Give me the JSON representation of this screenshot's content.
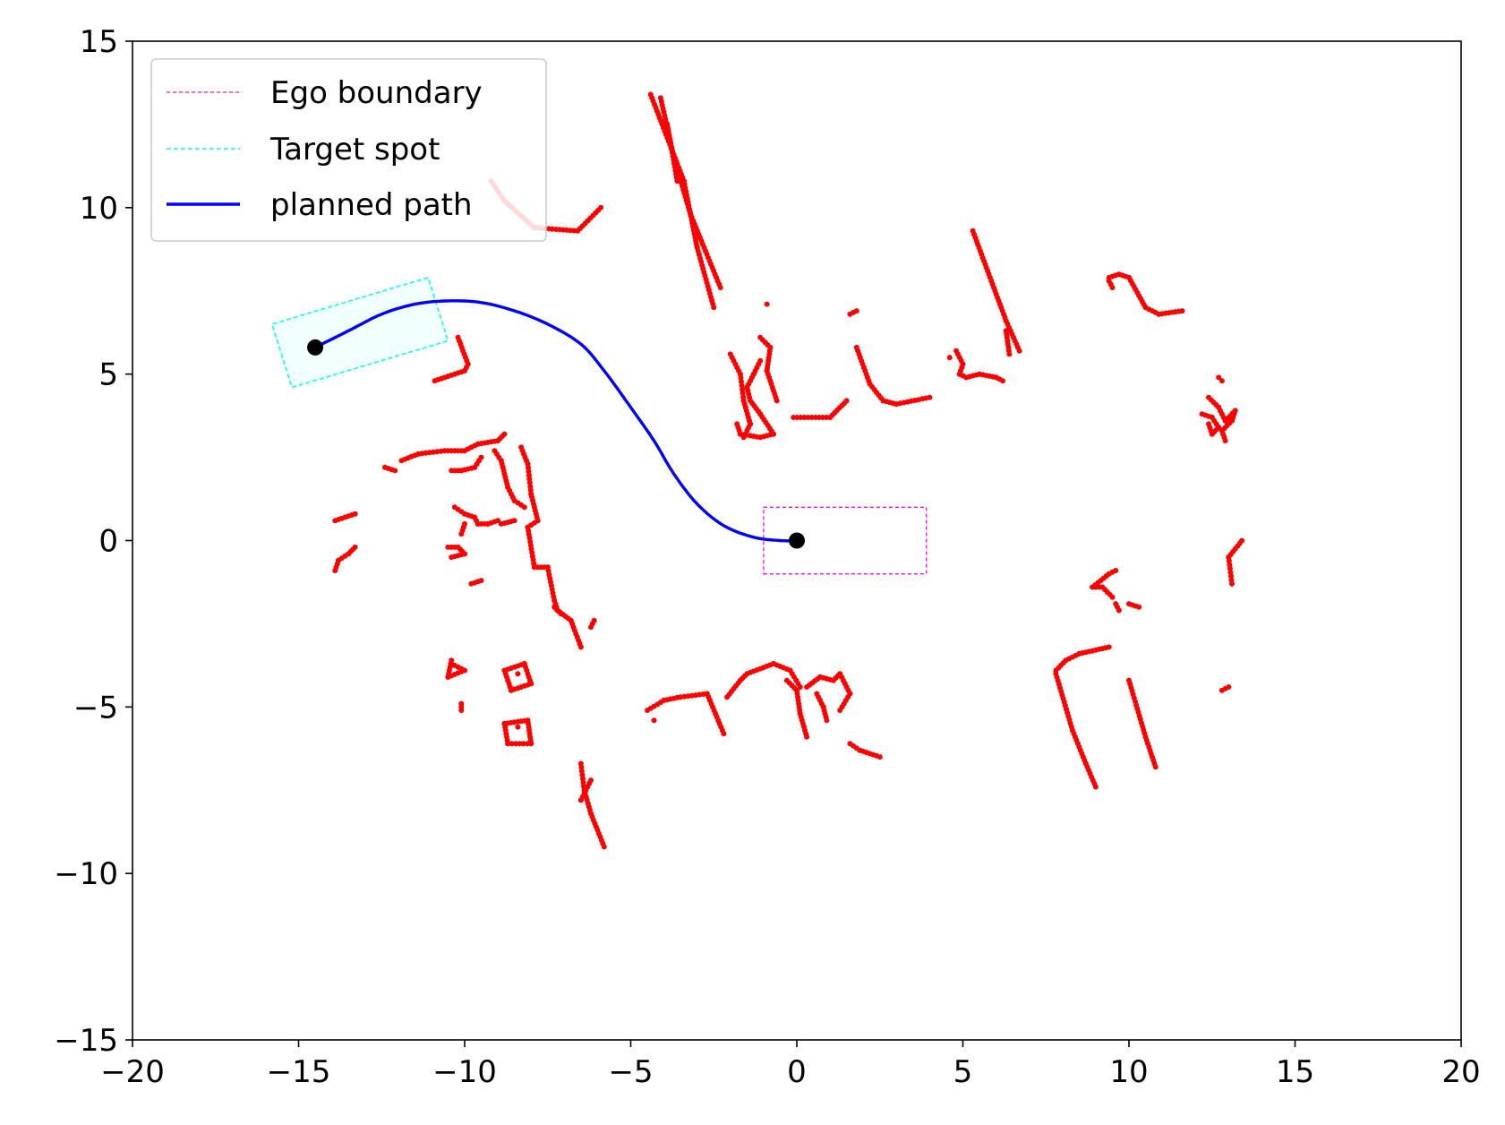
{
  "chart_data": {
    "type": "scatter",
    "title": "",
    "xlabel": "",
    "ylabel": "",
    "xlim": [
      -20,
      20
    ],
    "ylim": [
      -15,
      15
    ],
    "xticks": [
      -20,
      -15,
      -10,
      -5,
      0,
      5,
      10,
      15,
      20
    ],
    "yticks": [
      -15,
      -10,
      -5,
      0,
      5,
      10,
      15
    ],
    "xtick_labels": [
      "−20",
      "−15",
      "−10",
      "−5",
      "0",
      "5",
      "10",
      "15",
      "20"
    ],
    "ytick_labels": [
      "−15",
      "−10",
      "−5",
      "0",
      "5",
      "10",
      "15"
    ],
    "grid": false,
    "legend_position": "top-left",
    "legend": [
      {
        "label": "Ego boundary",
        "color": "#ff00ff",
        "style": "dashed"
      },
      {
        "label": "Target spot",
        "color": "#00ffff",
        "style": "dashed"
      },
      {
        "label": "planned path",
        "color": "#0000ff",
        "style": "solid"
      }
    ],
    "ego_boundary": [
      [
        -1,
        -1
      ],
      [
        3.9,
        -1
      ],
      [
        3.9,
        1
      ],
      [
        -1,
        1
      ]
    ],
    "target_spot": [
      [
        -15.2,
        4.6
      ],
      [
        -10.5,
        6.0
      ],
      [
        -11.1,
        7.9
      ],
      [
        -15.8,
        6.5
      ]
    ],
    "planned_path": [
      [
        -14.5,
        5.8
      ],
      [
        -13.5,
        6.3
      ],
      [
        -12.5,
        6.8
      ],
      [
        -11.5,
        7.1
      ],
      [
        -10.5,
        7.2
      ],
      [
        -9.5,
        7.15
      ],
      [
        -8.5,
        6.9
      ],
      [
        -7.5,
        6.5
      ],
      [
        -6.5,
        5.9
      ],
      [
        -5.8,
        5.1
      ],
      [
        -5.0,
        4.0
      ],
      [
        -4.3,
        3.0
      ],
      [
        -3.7,
        2.0
      ],
      [
        -3.0,
        1.1
      ],
      [
        -2.2,
        0.45
      ],
      [
        -1.3,
        0.1
      ],
      [
        -0.5,
        0.0
      ],
      [
        0.0,
        0.0
      ]
    ],
    "endpoints": [
      [
        -14.5,
        5.8
      ],
      [
        0.0,
        0.0
      ]
    ],
    "obstacle_segments": [
      [
        [
          -4.4,
          13.4
        ],
        [
          -3.4,
          10.8
        ],
        [
          -3.0,
          8.8
        ],
        [
          -2.5,
          7.0
        ]
      ],
      [
        [
          -4.1,
          13.3
        ],
        [
          -3.7,
          11.5
        ],
        [
          -3.2,
          9.8
        ],
        [
          -2.3,
          7.6
        ]
      ],
      [
        [
          -3.9,
          12.5
        ],
        [
          -3.6,
          10.8
        ]
      ],
      [
        [
          -9.2,
          10.8
        ],
        [
          -8.8,
          10.2
        ],
        [
          -7.9,
          9.4
        ],
        [
          -6.6,
          9.3
        ],
        [
          -5.9,
          10.0
        ]
      ],
      [
        [
          -10.2,
          6.1
        ],
        [
          -9.9,
          5.3
        ],
        [
          -10.0,
          5.1
        ],
        [
          -10.9,
          4.8
        ]
      ],
      [
        [
          -2.0,
          5.6
        ],
        [
          -1.7,
          5.0
        ],
        [
          -1.6,
          4.2
        ],
        [
          -1.4,
          3.5
        ],
        [
          -1.6,
          3.1
        ]
      ],
      [
        [
          -1.1,
          6.1
        ],
        [
          -0.8,
          5.8
        ],
        [
          -0.9,
          5.1
        ],
        [
          -0.6,
          4.2
        ]
      ],
      [
        [
          -1.1,
          5.4
        ],
        [
          -1.3,
          5.0
        ],
        [
          -1.5,
          4.6
        ],
        [
          -1.4,
          4.2
        ],
        [
          -1.1,
          3.8
        ],
        [
          -0.7,
          3.2
        ]
      ],
      [
        [
          -1.8,
          3.5
        ],
        [
          -1.7,
          3.2
        ],
        [
          -1.1,
          3.1
        ],
        [
          -0.7,
          3.2
        ]
      ],
      [
        [
          -0.9,
          7.1
        ]
      ],
      [
        [
          1.6,
          6.8
        ],
        [
          1.8,
          6.9
        ]
      ],
      [
        [
          -0.1,
          3.7
        ],
        [
          1.0,
          3.7
        ],
        [
          1.5,
          4.2
        ]
      ],
      [
        [
          1.8,
          5.8
        ],
        [
          2.2,
          4.7
        ],
        [
          2.6,
          4.2
        ],
        [
          3.0,
          4.1
        ],
        [
          4.0,
          4.3
        ]
      ],
      [
        [
          5.3,
          9.3
        ],
        [
          6.3,
          6.6
        ],
        [
          6.7,
          5.7
        ]
      ],
      [
        [
          6.3,
          6.3
        ],
        [
          6.4,
          5.6
        ]
      ],
      [
        [
          4.6,
          5.5
        ]
      ],
      [
        [
          4.8,
          5.7
        ],
        [
          5.0,
          5.3
        ],
        [
          4.9,
          5.0
        ],
        [
          5.1,
          4.9
        ],
        [
          5.5,
          5.0
        ],
        [
          6.0,
          4.9
        ],
        [
          6.2,
          4.8
        ]
      ],
      [
        [
          9.4,
          7.9
        ],
        [
          9.7,
          8.0
        ],
        [
          10.0,
          7.9
        ],
        [
          10.5,
          7.0
        ],
        [
          10.9,
          6.8
        ],
        [
          11.6,
          6.9
        ]
      ],
      [
        [
          9.4,
          7.8
        ],
        [
          9.5,
          7.6
        ]
      ],
      [
        [
          12.4,
          4.3
        ],
        [
          12.7,
          4.0
        ],
        [
          12.9,
          3.6
        ],
        [
          13.2,
          3.9
        ],
        [
          13.1,
          3.6
        ],
        [
          12.8,
          3.3
        ],
        [
          12.9,
          3.0
        ]
      ],
      [
        [
          12.2,
          3.8
        ],
        [
          12.5,
          3.7
        ],
        [
          12.7,
          3.4
        ],
        [
          12.5,
          3.2
        ],
        [
          12.4,
          3.5
        ]
      ],
      [
        [
          12.7,
          4.9
        ],
        [
          12.8,
          4.8
        ]
      ],
      [
        [
          -12.4,
          2.2
        ],
        [
          -12.1,
          2.1
        ]
      ],
      [
        [
          -11.9,
          2.4
        ],
        [
          -11.4,
          2.6
        ],
        [
          -10.6,
          2.7
        ],
        [
          -10.0,
          2.7
        ],
        [
          -9.6,
          2.9
        ],
        [
          -9.0,
          3.0
        ],
        [
          -8.8,
          3.2
        ]
      ],
      [
        [
          -10.4,
          2.1
        ],
        [
          -10.1,
          2.1
        ],
        [
          -9.7,
          2.2
        ],
        [
          -9.5,
          2.5
        ]
      ],
      [
        [
          -9.1,
          2.7
        ],
        [
          -8.9,
          2.4
        ],
        [
          -8.7,
          1.6
        ],
        [
          -8.5,
          1.2
        ],
        [
          -8.2,
          1.0
        ]
      ],
      [
        [
          -8.3,
          2.8
        ],
        [
          -8.1,
          2.3
        ],
        [
          -8.0,
          1.4
        ],
        [
          -7.8,
          0.6
        ]
      ],
      [
        [
          -7.8,
          0.6
        ],
        [
          -8.1,
          0.4
        ],
        [
          -7.9,
          -0.8
        ],
        [
          -7.5,
          -0.8
        ],
        [
          -7.3,
          -1.8
        ],
        [
          -7.2,
          -2.1
        ],
        [
          -6.8,
          -2.4
        ],
        [
          -6.5,
          -3.2
        ]
      ],
      [
        [
          -7.3,
          -2.0
        ],
        [
          -7.1,
          -2.2
        ]
      ],
      [
        [
          -6.2,
          -2.6
        ],
        [
          -6.1,
          -2.4
        ]
      ],
      [
        [
          -13.9,
          0.6
        ],
        [
          -13.3,
          0.8
        ]
      ],
      [
        [
          -13.3,
          -0.2
        ],
        [
          -13.5,
          -0.4
        ],
        [
          -13.8,
          -0.6
        ],
        [
          -13.9,
          -0.9
        ]
      ],
      [
        [
          -10.3,
          1.0
        ],
        [
          -10.0,
          0.8
        ],
        [
          -9.7,
          0.7
        ],
        [
          -9.6,
          0.5
        ],
        [
          -9.3,
          0.5
        ],
        [
          -9.0,
          0.6
        ]
      ],
      [
        [
          -8.9,
          0.5
        ],
        [
          -8.5,
          0.6
        ]
      ],
      [
        [
          -10.0,
          0.5
        ],
        [
          -10.1,
          0.2
        ]
      ],
      [
        [
          -10.5,
          -0.2
        ],
        [
          -10.2,
          -0.2
        ],
        [
          -10.0,
          -0.4
        ],
        [
          -10.4,
          -0.5
        ]
      ],
      [
        [
          -9.8,
          -1.3
        ],
        [
          -9.5,
          -1.2
        ]
      ],
      [
        [
          -10.4,
          -3.7
        ],
        [
          -10.0,
          -3.9
        ],
        [
          -10.5,
          -4.1
        ],
        [
          -10.4,
          -3.6
        ]
      ],
      [
        [
          -10.1,
          -5.1
        ],
        [
          -10.1,
          -4.9
        ]
      ],
      [
        [
          -8.8,
          -3.9
        ],
        [
          -8.2,
          -3.7
        ],
        [
          -8.0,
          -4.3
        ],
        [
          -8.6,
          -4.5
        ],
        [
          -8.8,
          -3.9
        ]
      ],
      [
        [
          -8.8,
          -5.5
        ],
        [
          -8.1,
          -5.4
        ],
        [
          -8.0,
          -6.1
        ],
        [
          -8.7,
          -6.1
        ],
        [
          -8.8,
          -5.5
        ]
      ],
      [
        [
          -8.4,
          -4.0
        ]
      ],
      [
        [
          -8.4,
          -5.6
        ]
      ],
      [
        [
          -6.5,
          -6.7
        ],
        [
          -6.4,
          -7.5
        ],
        [
          -6.2,
          -8.2
        ],
        [
          -5.8,
          -9.2
        ]
      ],
      [
        [
          -6.2,
          -7.2
        ],
        [
          -6.5,
          -7.8
        ]
      ],
      [
        [
          -4.5,
          -5.1
        ],
        [
          -4.0,
          -4.8
        ],
        [
          -3.5,
          -4.7
        ],
        [
          -2.7,
          -4.6
        ],
        [
          -2.2,
          -5.8
        ]
      ],
      [
        [
          -4.3,
          -5.4
        ]
      ],
      [
        [
          -2.1,
          -4.7
        ],
        [
          -1.7,
          -4.2
        ],
        [
          -1.5,
          -4.0
        ],
        [
          -0.7,
          -3.7
        ],
        [
          -0.2,
          -3.9
        ],
        [
          0.1,
          -4.4
        ]
      ],
      [
        [
          -0.3,
          -4.2
        ],
        [
          0.0,
          -4.5
        ],
        [
          0.1,
          -5.2
        ],
        [
          0.3,
          -5.9
        ]
      ],
      [
        [
          0.3,
          -4.4
        ],
        [
          0.7,
          -4.1
        ],
        [
          1.1,
          -4.2
        ],
        [
          1.3,
          -4.0
        ],
        [
          1.6,
          -4.6
        ],
        [
          1.3,
          -5.1
        ]
      ],
      [
        [
          0.6,
          -4.6
        ],
        [
          0.8,
          -5.0
        ],
        [
          0.9,
          -5.4
        ]
      ],
      [
        [
          1.6,
          -6.1
        ],
        [
          1.9,
          -6.3
        ],
        [
          2.5,
          -6.5
        ]
      ],
      [
        [
          7.8,
          -4.0
        ],
        [
          8.3,
          -5.7
        ],
        [
          8.7,
          -6.7
        ],
        [
          9.0,
          -7.4
        ]
      ],
      [
        [
          7.8,
          -3.9
        ],
        [
          8.1,
          -3.6
        ],
        [
          8.5,
          -3.4
        ],
        [
          9.4,
          -3.2
        ]
      ],
      [
        [
          10.0,
          -4.2
        ],
        [
          10.5,
          -5.9
        ],
        [
          10.8,
          -6.8
        ]
      ],
      [
        [
          9.5,
          -1.7
        ],
        [
          9.2,
          -1.4
        ],
        [
          8.9,
          -1.4
        ],
        [
          9.4,
          -1.0
        ],
        [
          9.6,
          -0.9
        ]
      ],
      [
        [
          9.6,
          -1.9
        ],
        [
          9.7,
          -2.1
        ]
      ],
      [
        [
          10.0,
          -1.9
        ],
        [
          10.3,
          -2.0
        ]
      ],
      [
        [
          13.4,
          0.0
        ],
        [
          13.0,
          -0.5
        ],
        [
          13.1,
          -1.3
        ]
      ],
      [
        [
          12.8,
          -4.5
        ],
        [
          13.0,
          -4.4
        ]
      ]
    ]
  }
}
